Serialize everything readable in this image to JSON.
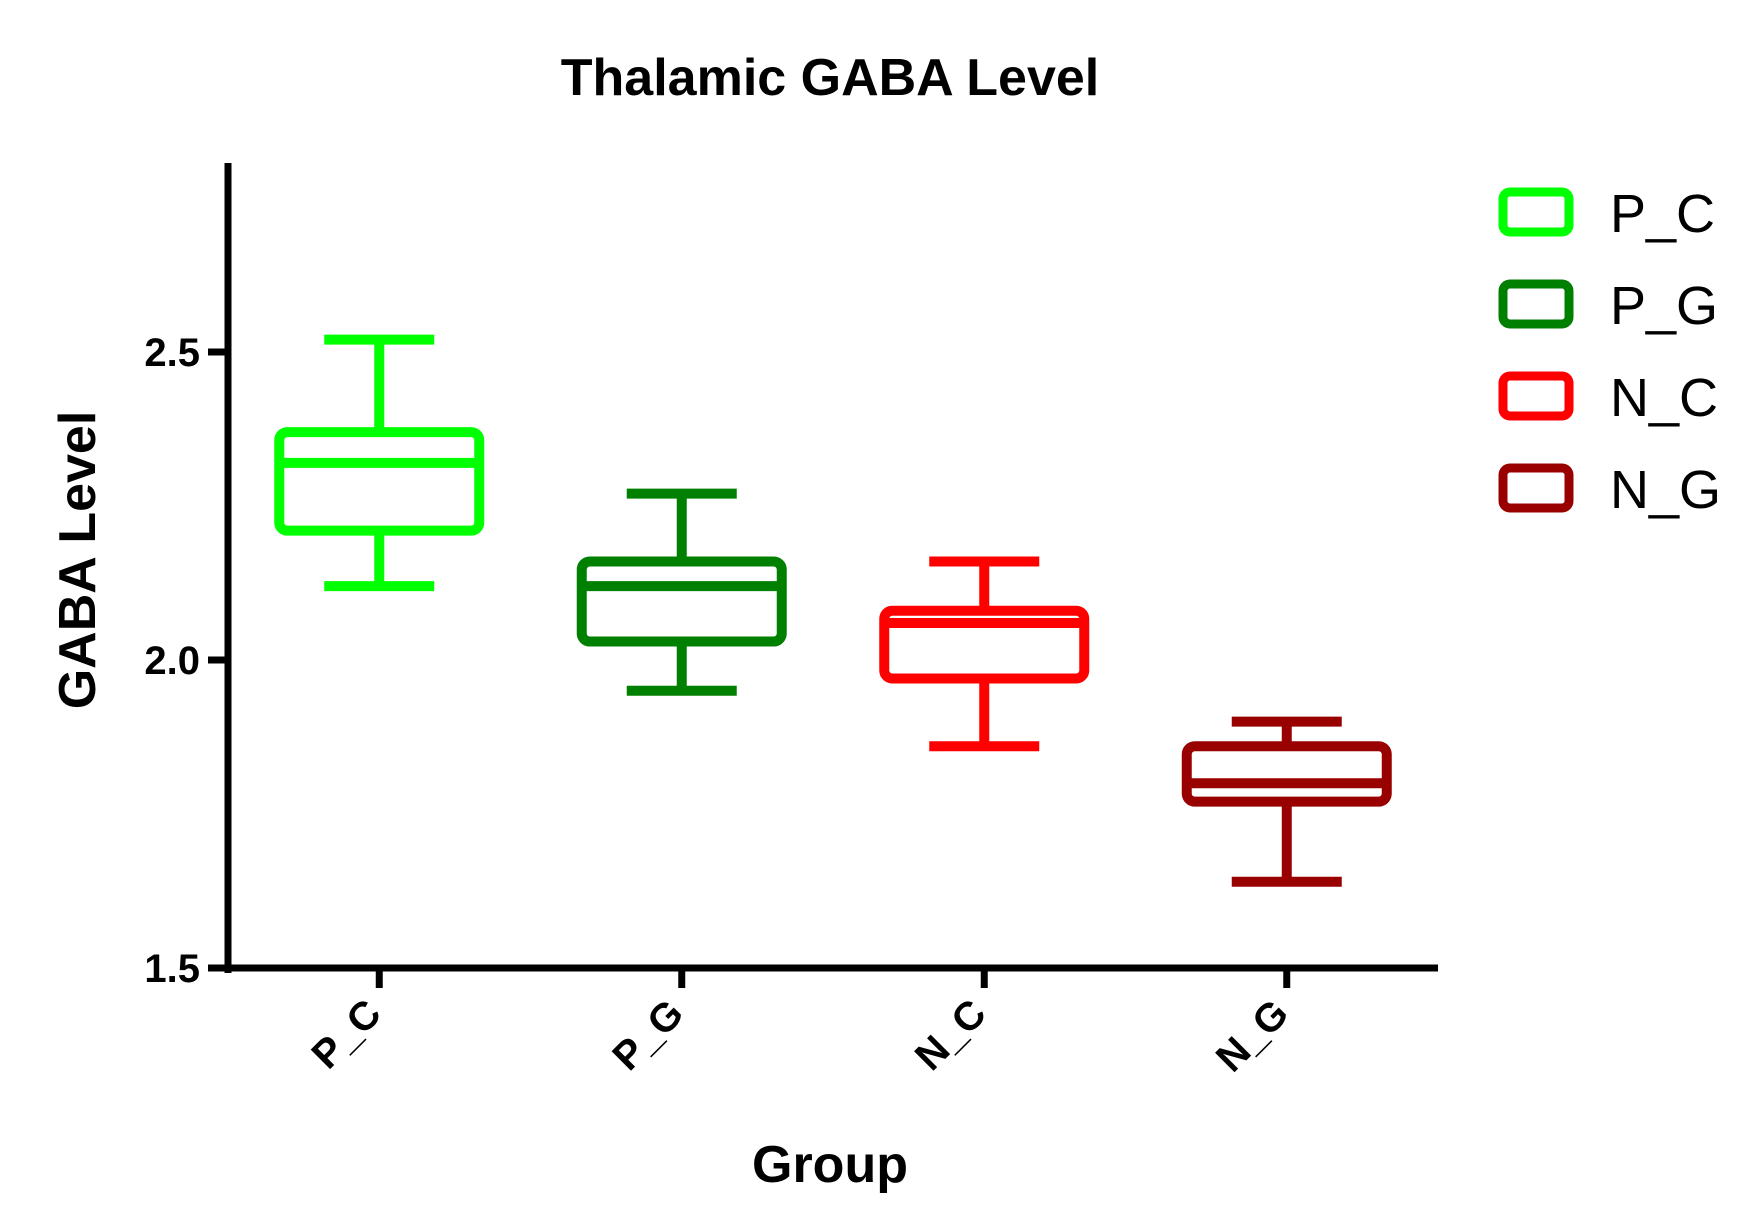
{
  "chart_data": {
    "type": "box",
    "title": "Thalamic GABA Level",
    "xlabel": "Group",
    "ylabel": "GABA Level",
    "ylim": [
      1.5,
      2.8
    ],
    "yticks": [
      {
        "value": 1.5,
        "label": "1.5"
      },
      {
        "value": 2.0,
        "label": "2.0"
      },
      {
        "value": 2.5,
        "label": "2.5"
      }
    ],
    "grid": false,
    "legend_position": "top-right",
    "categories": [
      "P_C",
      "P_G",
      "N_C",
      "N_G"
    ],
    "series": [
      {
        "name": "P_C",
        "color": "#00ff00",
        "min": 2.12,
        "q1": 2.21,
        "median": 2.32,
        "q3": 2.37,
        "max": 2.52
      },
      {
        "name": "P_G",
        "color": "#008000",
        "min": 1.95,
        "q1": 2.03,
        "median": 2.12,
        "q3": 2.16,
        "max": 2.27
      },
      {
        "name": "N_C",
        "color": "#ff0000",
        "min": 1.86,
        "q1": 1.97,
        "median": 2.06,
        "q3": 2.08,
        "max": 2.16
      },
      {
        "name": "N_G",
        "color": "#990000",
        "min": 1.64,
        "q1": 1.77,
        "median": 1.8,
        "q3": 1.86,
        "max": 1.9
      }
    ]
  }
}
